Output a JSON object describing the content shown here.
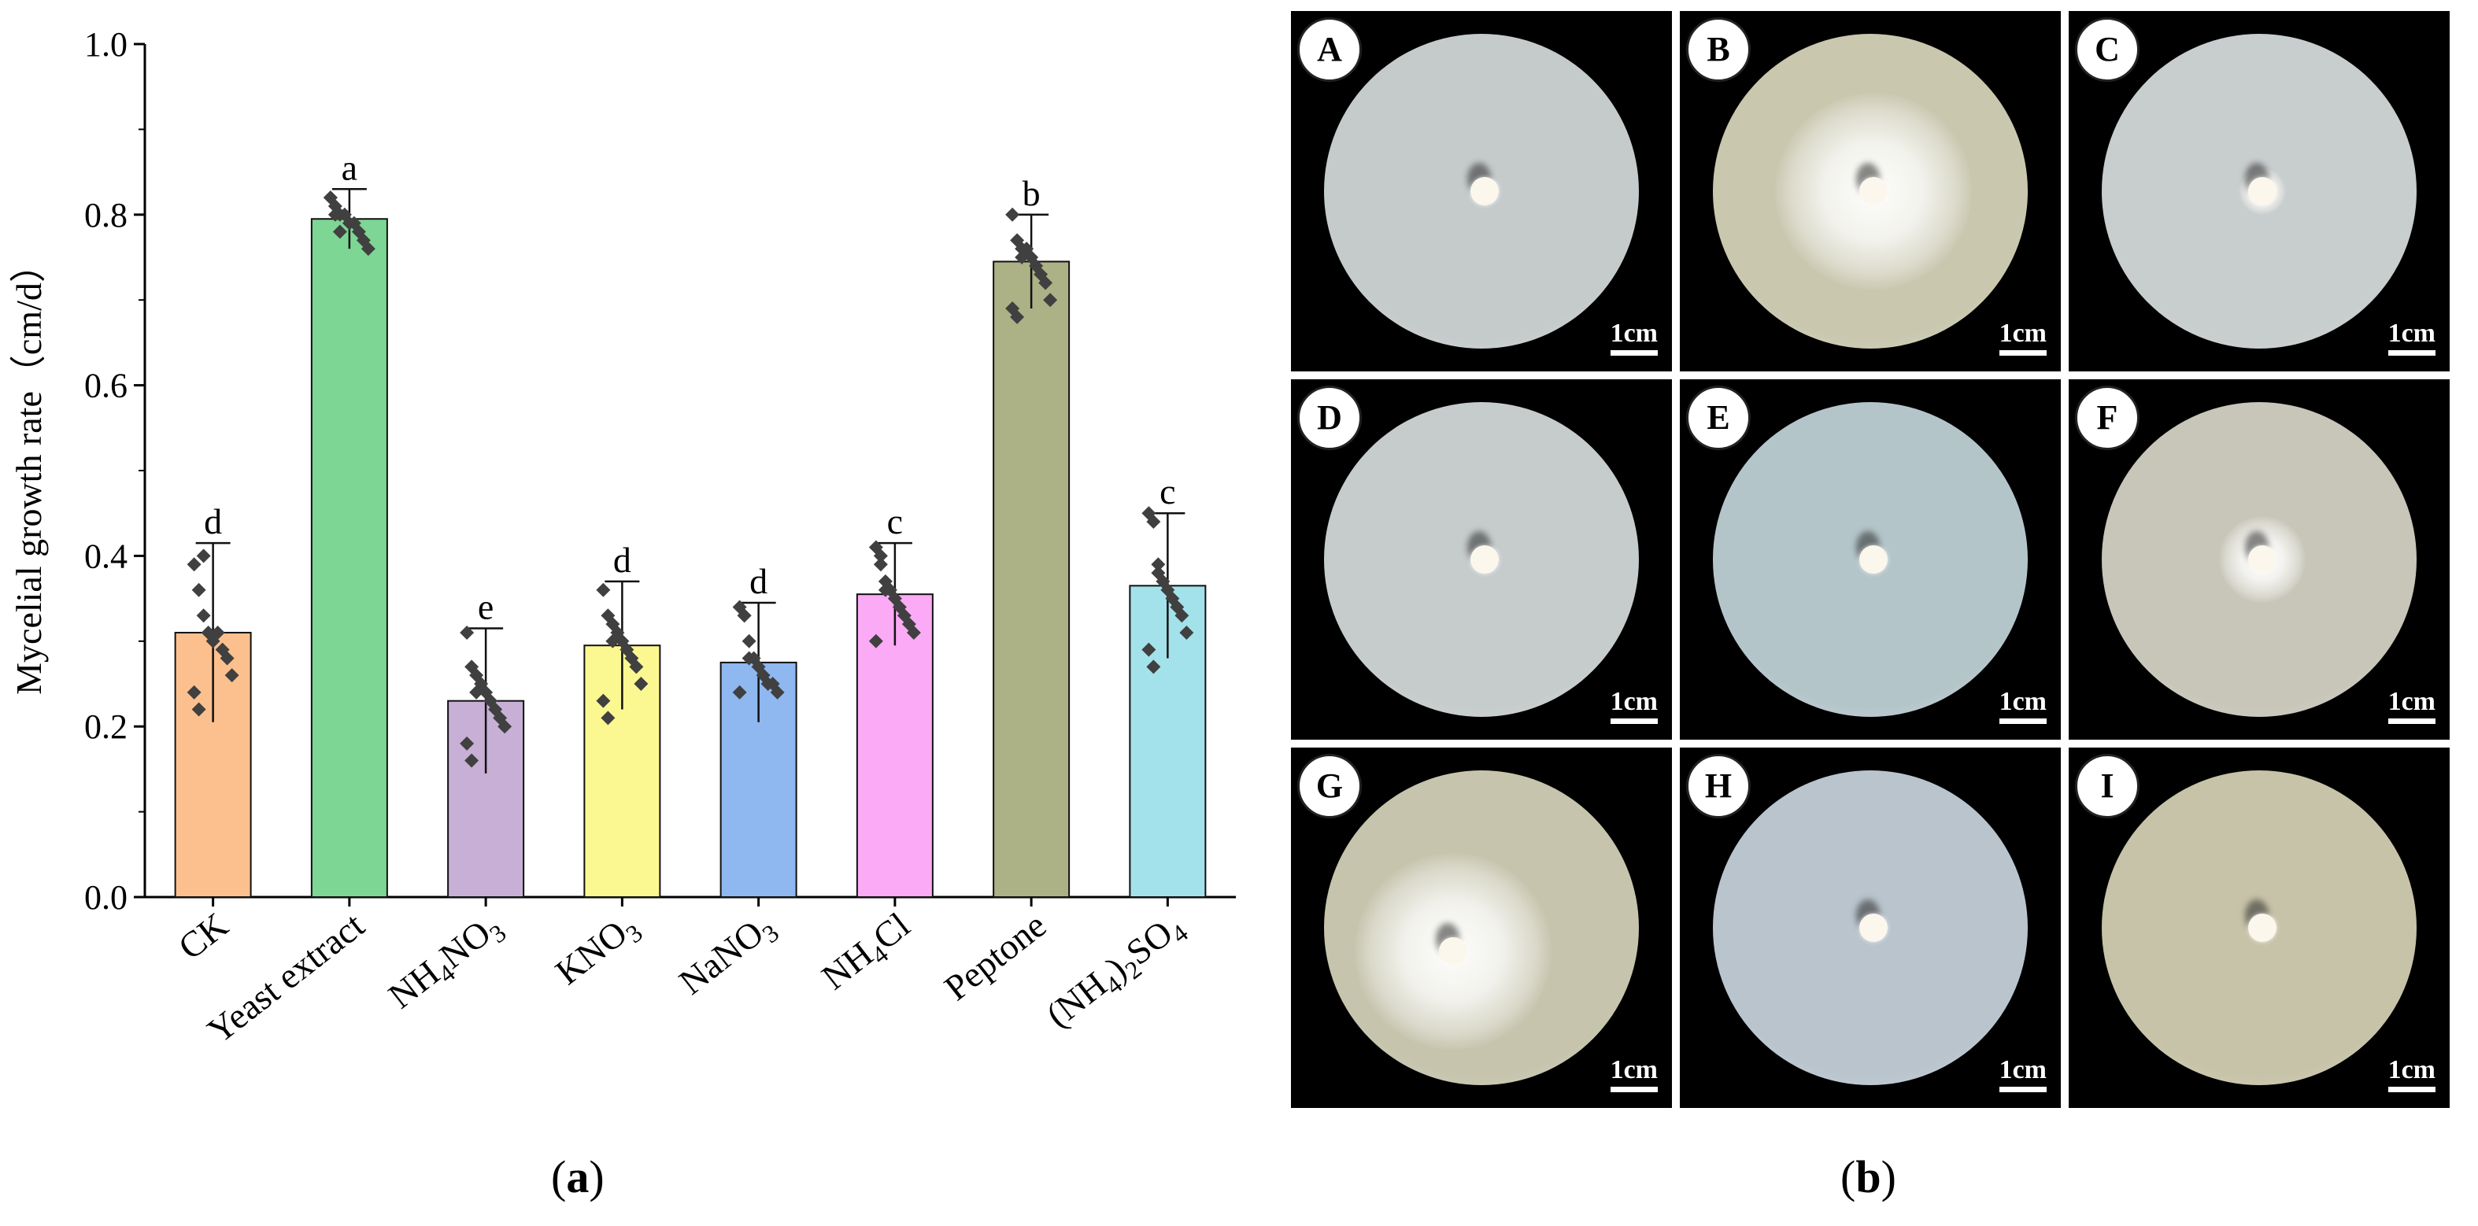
{
  "chart_data": {
    "type": "bar",
    "ylabel": "Mycelial growth rate（cm/d）",
    "ylim": [
      0.0,
      1.0
    ],
    "yticks": [
      "0.0",
      "0.2",
      "0.4",
      "0.6",
      "0.8",
      "1.0"
    ],
    "categories": [
      {
        "label": "CK"
      },
      {
        "label": "Yeast extract"
      },
      {
        "label": "NH",
        "sub1": "4",
        "mid": "NO",
        "sub2": "3"
      },
      {
        "label": "KNO",
        "sub1": "3"
      },
      {
        "label": "NaNO",
        "sub1": "3"
      },
      {
        "label": "NH",
        "sub1": "4",
        "mid": "Cl"
      },
      {
        "label": "Peptone"
      },
      {
        "label": "(NH",
        "sub1": "4",
        "mid": ")",
        "sub2": "2",
        "tail": "SO",
        "sub3": "4"
      }
    ],
    "values": [
      0.31,
      0.795,
      0.23,
      0.295,
      0.275,
      0.355,
      0.745,
      0.365
    ],
    "errors": [
      0.105,
      0.035,
      0.085,
      0.075,
      0.07,
      0.06,
      0.055,
      0.085
    ],
    "significance": [
      "d",
      "a",
      "e",
      "d",
      "d",
      "c",
      "b",
      "c"
    ],
    "colors": [
      "#fbc08e",
      "#7dd693",
      "#c8afd6",
      "#fbf891",
      "#8fb7f0",
      "#fbaaf6",
      "#adb186",
      "#a3e2eb"
    ],
    "points": [
      [
        0.39,
        0.36,
        0.33,
        0.31,
        0.3,
        0.31,
        0.29,
        0.28,
        0.26,
        0.24,
        0.22,
        0.4
      ],
      [
        0.82,
        0.81,
        0.8,
        0.8,
        0.79,
        0.79,
        0.78,
        0.77,
        0.76,
        0.82,
        0.8,
        0.78
      ],
      [
        0.31,
        0.27,
        0.26,
        0.25,
        0.24,
        0.23,
        0.22,
        0.21,
        0.2,
        0.18,
        0.16,
        0.24
      ],
      [
        0.36,
        0.33,
        0.32,
        0.31,
        0.3,
        0.29,
        0.28,
        0.27,
        0.25,
        0.23,
        0.21,
        0.3
      ],
      [
        0.34,
        0.33,
        0.3,
        0.28,
        0.27,
        0.26,
        0.25,
        0.25,
        0.24,
        0.24,
        0.33,
        0.28
      ],
      [
        0.41,
        0.39,
        0.37,
        0.36,
        0.35,
        0.34,
        0.33,
        0.32,
        0.31,
        0.3,
        0.4,
        0.36
      ],
      [
        0.8,
        0.77,
        0.76,
        0.76,
        0.75,
        0.74,
        0.73,
        0.72,
        0.7,
        0.69,
        0.68,
        0.75
      ],
      [
        0.45,
        0.44,
        0.39,
        0.37,
        0.36,
        0.35,
        0.34,
        0.33,
        0.31,
        0.29,
        0.27,
        0.38
      ]
    ]
  },
  "panel_labels": {
    "a": "a",
    "b": "b"
  },
  "plates": [
    {
      "letter": "A",
      "scale": "1cm",
      "growth": "none",
      "tint": "#c5cbcb"
    },
    {
      "letter": "B",
      "scale": "1cm",
      "growth": "large",
      "tint": "#c9c7ae"
    },
    {
      "letter": "C",
      "scale": "1cm",
      "growth": "tiny",
      "tint": "#c8cdcd"
    },
    {
      "letter": "D",
      "scale": "1cm",
      "growth": "none",
      "tint": "#c6cccc"
    },
    {
      "letter": "E",
      "scale": "1cm",
      "growth": "none",
      "tint": "#b4c5ca"
    },
    {
      "letter": "F",
      "scale": "1cm",
      "growth": "small",
      "tint": "#c8c6b9"
    },
    {
      "letter": "G",
      "scale": "1cm",
      "growth": "large",
      "tint": "#c6c4ac"
    },
    {
      "letter": "H",
      "scale": "1cm",
      "growth": "none",
      "tint": "#b9c4cd"
    },
    {
      "letter": "I",
      "scale": "1cm",
      "growth": "none",
      "tint": "#c7c3a8"
    }
  ]
}
